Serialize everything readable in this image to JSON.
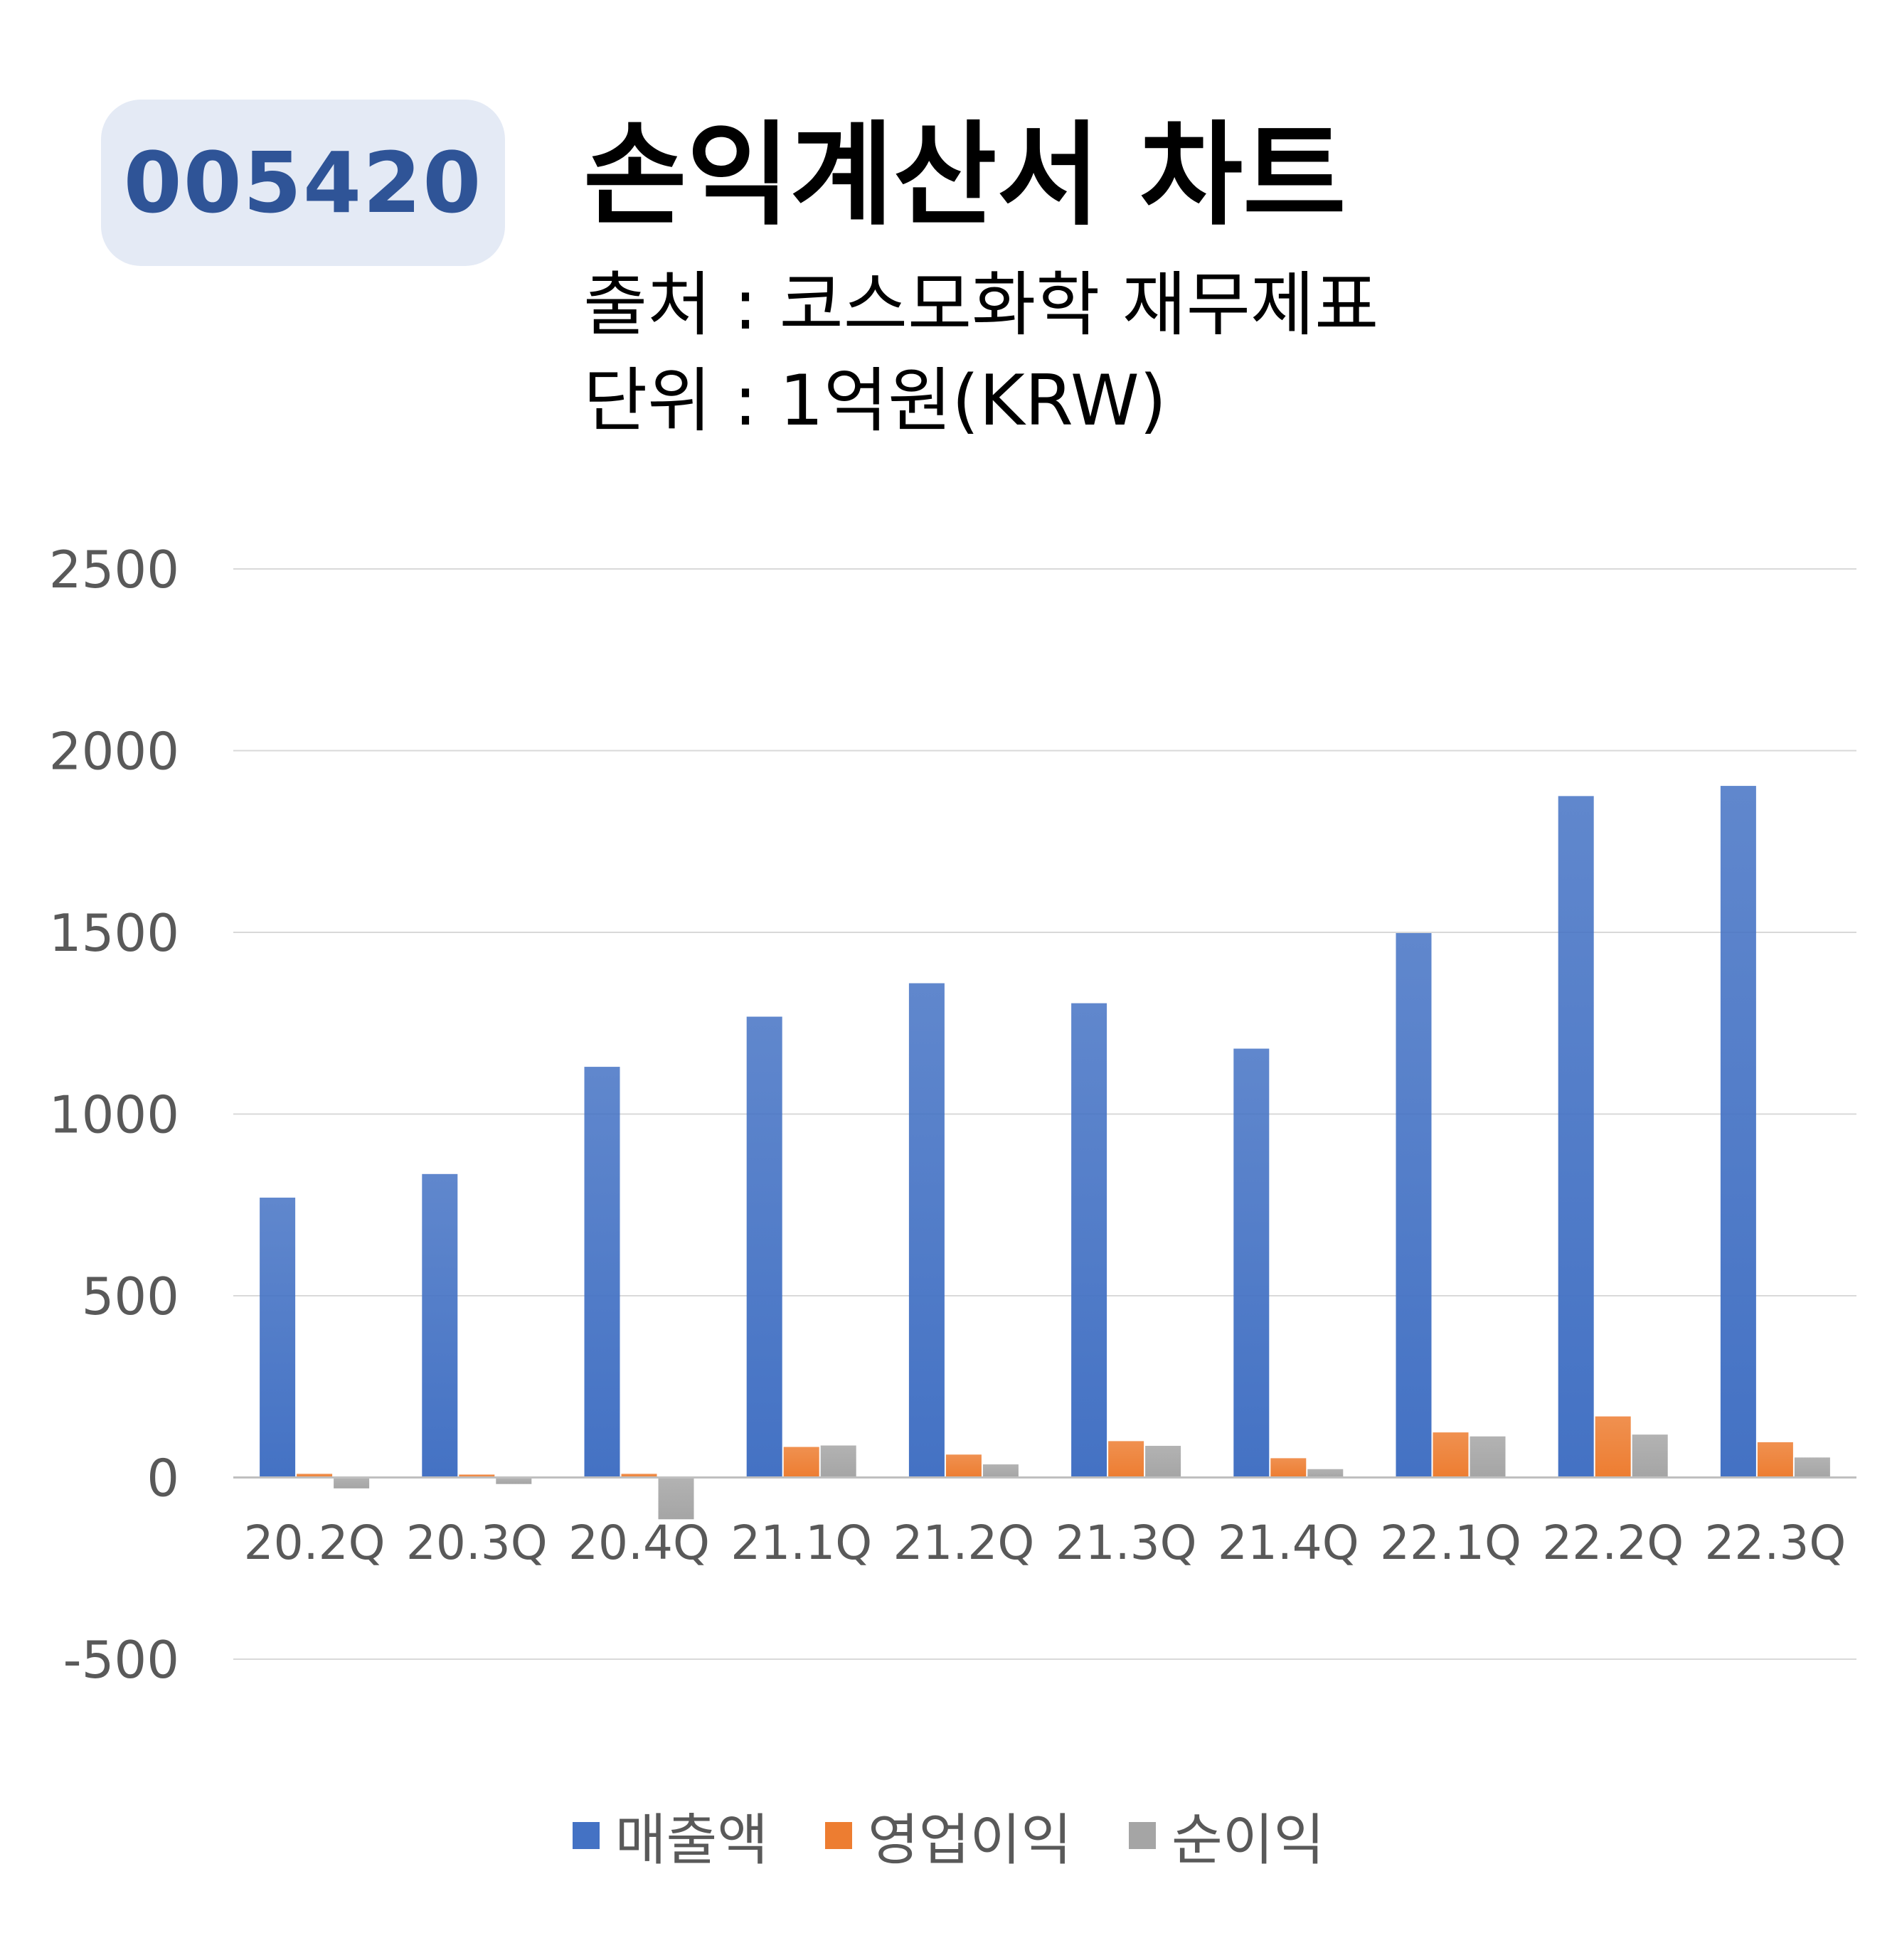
{
  "header": {
    "ticker": "005420",
    "title": "손익계산서 차트",
    "source": "출처 : 코스모화학 재무제표",
    "unit": "단위 : 1억원(KRW)"
  },
  "chart_data": {
    "type": "bar",
    "categories": [
      "20.2Q",
      "20.3Q",
      "20.4Q",
      "21.1Q",
      "21.2Q",
      "21.3Q",
      "21.4Q",
      "22.1Q",
      "22.2Q",
      "22.3Q"
    ],
    "series": [
      {
        "name": "매출액",
        "color": "#4472c4",
        "values": [
          770,
          835,
          1130,
          1268,
          1360,
          1305,
          1180,
          1498,
          1875,
          1903
        ]
      },
      {
        "name": "영업이익",
        "color": "#ed7d31",
        "values": [
          10,
          8,
          10,
          84,
          63,
          100,
          53,
          124,
          168,
          97
        ]
      },
      {
        "name": "순이익",
        "color": "#a5a5a5",
        "values": [
          -30,
          -18,
          -115,
          88,
          36,
          87,
          23,
          113,
          118,
          55
        ]
      }
    ],
    "ylim": [
      -500,
      2500
    ],
    "yticks": [
      -500,
      0,
      500,
      1000,
      1500,
      2000,
      2500
    ],
    "grid": true,
    "legend_position": "bottom"
  }
}
